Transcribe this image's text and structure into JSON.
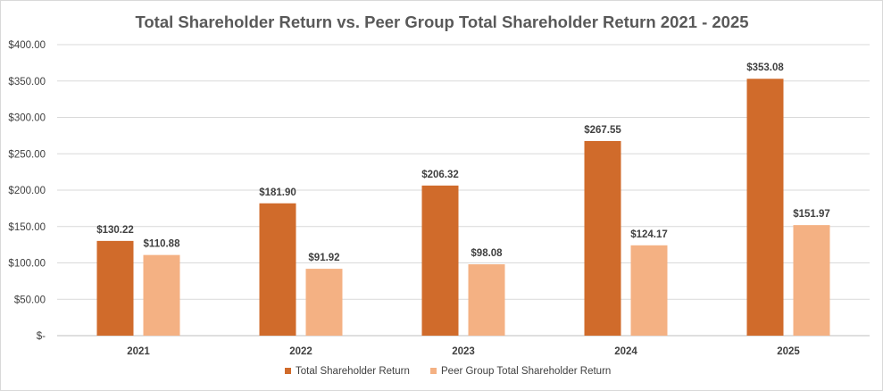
{
  "chart_data": {
    "type": "bar",
    "title": "Total Shareholder Return vs. Peer Group Total Shareholder Return 2021 - 2025",
    "categories": [
      "2021",
      "2022",
      "2023",
      "2024",
      "2025"
    ],
    "series": [
      {
        "name": "Total Shareholder Return",
        "color": "#D06B2B",
        "values": [
          130.22,
          181.9,
          206.32,
          267.55,
          353.08
        ],
        "labels": [
          "$130.22",
          "$181.90",
          "$206.32",
          "$267.55",
          "$353.08"
        ]
      },
      {
        "name": "Peer Group Total Shareholder Return",
        "color": "#F4B183",
        "values": [
          110.88,
          91.92,
          98.08,
          124.17,
          151.97
        ],
        "labels": [
          "$110.88",
          "$91.92",
          "$98.08",
          "$124.17",
          "$151.97"
        ]
      }
    ],
    "ylim": [
      0,
      400
    ],
    "y_ticks": [
      0,
      50,
      100,
      150,
      200,
      250,
      300,
      350,
      400
    ],
    "y_tick_labels": [
      "$-",
      "$50.00",
      "$100.00",
      "$150.00",
      "$200.00",
      "$250.00",
      "$300.00",
      "$350.00",
      "$400.00"
    ],
    "xlabel": "",
    "ylabel": "",
    "grid": true,
    "legend_position": "bottom"
  }
}
